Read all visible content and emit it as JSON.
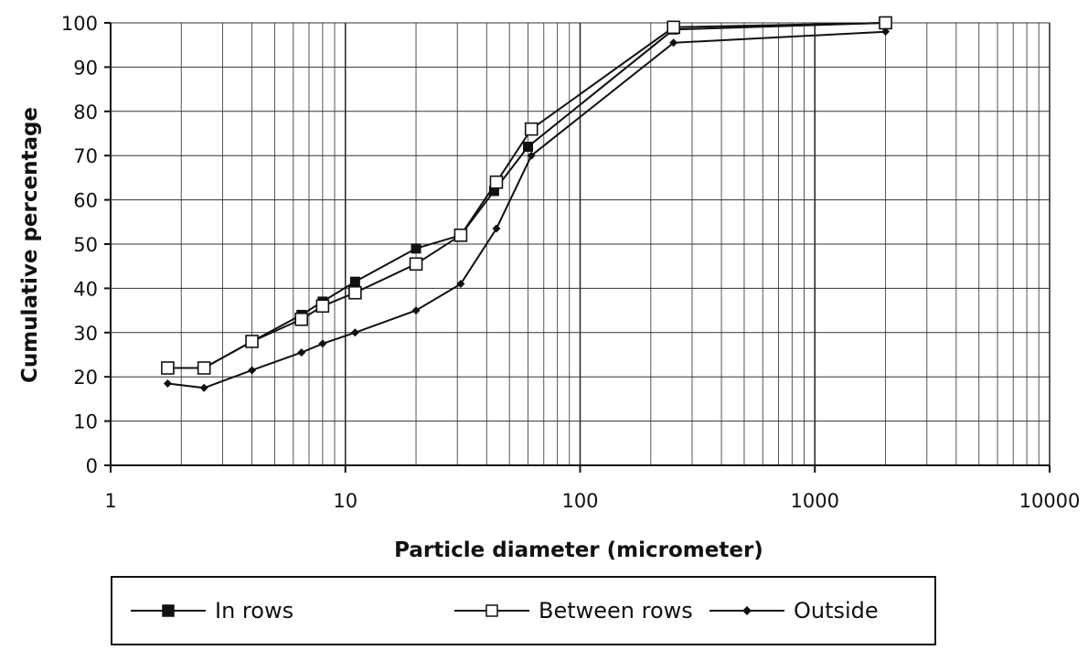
{
  "chart_data": {
    "type": "line",
    "xscale": "log",
    "xlabel": "Particle diameter (micrometer)",
    "ylabel": "Cumulative percentage",
    "xlim": [
      1,
      10000
    ],
    "ylim": [
      0,
      100
    ],
    "x_ticks": [
      "1",
      "10",
      "100",
      "1000",
      "10000"
    ],
    "y_ticks": [
      "0",
      "10",
      "20",
      "30",
      "40",
      "50",
      "60",
      "70",
      "80",
      "90",
      "100"
    ],
    "grid": true,
    "legend_position": "bottom",
    "series": [
      {
        "name": "In rows",
        "marker": "filled-square",
        "color": "#111111",
        "points": [
          [
            1.75,
            22
          ],
          [
            2.5,
            22
          ],
          [
            4,
            28
          ],
          [
            6.5,
            34
          ],
          [
            8,
            37
          ],
          [
            11,
            41.5
          ],
          [
            20,
            49
          ],
          [
            31,
            52
          ],
          [
            43,
            62
          ],
          [
            60,
            72
          ],
          [
            250,
            98.5
          ],
          [
            2000,
            100
          ]
        ]
      },
      {
        "name": "Between rows",
        "marker": "open-square",
        "color": "#111111",
        "points": [
          [
            1.75,
            22
          ],
          [
            2.5,
            22
          ],
          [
            4,
            28
          ],
          [
            6.5,
            33
          ],
          [
            8,
            36
          ],
          [
            11,
            39
          ],
          [
            20,
            45.5
          ],
          [
            31,
            52
          ],
          [
            44,
            64
          ],
          [
            62,
            76
          ],
          [
            250,
            99
          ],
          [
            2000,
            100
          ]
        ]
      },
      {
        "name": "Outside",
        "marker": "diamond",
        "color": "#111111",
        "points": [
          [
            1.75,
            18.5
          ],
          [
            2.5,
            17.5
          ],
          [
            4,
            21.5
          ],
          [
            6.5,
            25.5
          ],
          [
            8,
            27.5
          ],
          [
            11,
            30
          ],
          [
            20,
            35
          ],
          [
            31,
            41
          ],
          [
            44,
            53.5
          ],
          [
            62,
            70
          ],
          [
            250,
            95.5
          ],
          [
            2000,
            98
          ]
        ]
      }
    ]
  }
}
